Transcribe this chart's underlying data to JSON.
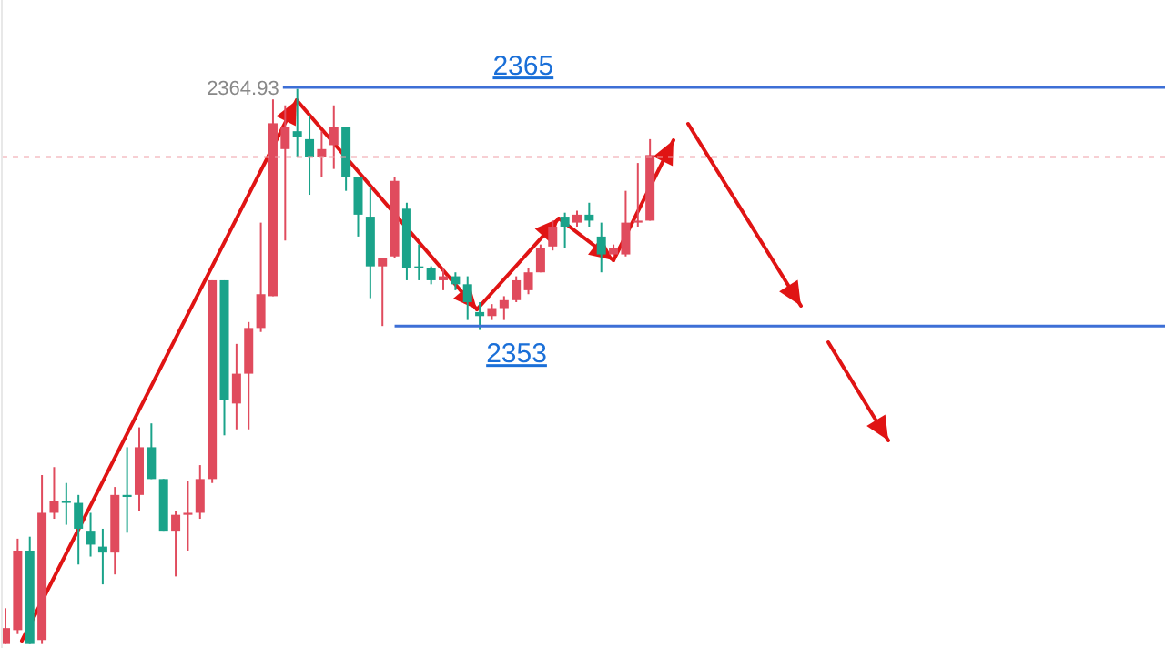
{
  "chart_data": {
    "type": "candlestick",
    "categories": [
      null,
      null,
      null,
      null,
      null,
      null,
      null,
      null,
      null,
      null,
      null,
      null,
      null,
      null,
      null,
      null,
      null,
      null,
      null,
      null,
      null,
      null,
      null,
      null,
      null,
      null,
      null,
      null,
      null,
      null,
      null,
      null,
      null,
      null,
      null,
      null,
      null,
      null,
      null,
      null,
      null,
      null,
      null,
      null,
      null,
      null,
      null,
      null,
      null,
      null,
      null,
      null,
      null,
      null
    ],
    "ohlc": [
      [
        2337.0,
        2338.8,
        2337.0,
        2337.8
      ],
      [
        2337.7,
        2342.3,
        2337.5,
        2341.7
      ],
      [
        2341.7,
        2342.4,
        2337.0,
        2337.0
      ],
      [
        2337.2,
        2345.5,
        2337.0,
        2343.6
      ],
      [
        2343.6,
        2345.9,
        2343.3,
        2344.2
      ],
      [
        2344.2,
        2345.1,
        2343.0,
        2344.1
      ],
      [
        2344.1,
        2344.5,
        2341.0,
        2342.8
      ],
      [
        2342.7,
        2343.6,
        2341.4,
        2342.0
      ],
      [
        2341.9,
        2342.8,
        2340.0,
        2341.6
      ],
      [
        2341.6,
        2344.9,
        2340.5,
        2344.5
      ],
      [
        2344.5,
        2346.9,
        2342.6,
        2344.4
      ],
      [
        2344.5,
        2347.9,
        2343.7,
        2346.9
      ],
      [
        2346.9,
        2348.1,
        2345.3,
        2345.3
      ],
      [
        2345.3,
        2345.3,
        2342.7,
        2342.7
      ],
      [
        2342.7,
        2343.7,
        2340.4,
        2343.5
      ],
      [
        2343.5,
        2345.2,
        2341.7,
        2343.6
      ],
      [
        2343.6,
        2346.0,
        2343.3,
        2345.3
      ],
      [
        2345.3,
        2355.3,
        2345.1,
        2355.3
      ],
      [
        2355.3,
        2355.3,
        2347.5,
        2349.3
      ],
      [
        2349.1,
        2352.1,
        2347.8,
        2350.6
      ],
      [
        2350.6,
        2353.2,
        2347.8,
        2352.9
      ],
      [
        2352.9,
        2358.2,
        2352.7,
        2354.6
      ],
      [
        2354.5,
        2364.4,
        2354.5,
        2363.2
      ],
      [
        2361.9,
        2364.1,
        2357.3,
        2363.0
      ],
      [
        2362.8,
        2364.93,
        2361.5,
        2362.5
      ],
      [
        2362.4,
        2363.6,
        2359.6,
        2361.5
      ],
      [
        2361.5,
        2362.8,
        2360.5,
        2361.9
      ],
      [
        2362.1,
        2364.1,
        2360.9,
        2363.0
      ],
      [
        2363.0,
        2363.0,
        2359.8,
        2360.5
      ],
      [
        2360.5,
        2360.5,
        2357.5,
        2358.6
      ],
      [
        2358.5,
        2360.0,
        2354.4,
        2356.0
      ],
      [
        2356.0,
        2356.4,
        2353.0,
        2356.4
      ],
      [
        2356.5,
        2360.5,
        2356.4,
        2360.3
      ],
      [
        2358.9,
        2359.2,
        2355.3,
        2355.9
      ],
      [
        2356.0,
        2357.1,
        2355.3,
        2355.9
      ],
      [
        2355.9,
        2356.0,
        2355.1,
        2355.3
      ],
      [
        2355.3,
        2355.9,
        2354.8,
        2355.5
      ],
      [
        2355.5,
        2355.7,
        2354.8,
        2355.1
      ],
      [
        2355.1,
        2355.5,
        2353.3,
        2354.2
      ],
      [
        2353.7,
        2354.2,
        2352.8,
        2353.5
      ],
      [
        2353.5,
        2354.1,
        2353.3,
        2353.9
      ],
      [
        2353.9,
        2354.5,
        2353.3,
        2354.3
      ],
      [
        2354.3,
        2355.5,
        2354.2,
        2355.3
      ],
      [
        2354.8,
        2355.9,
        2354.6,
        2355.7
      ],
      [
        2355.7,
        2357.1,
        2355.7,
        2356.9
      ],
      [
        2357.0,
        2358.3,
        2356.8,
        2358.0
      ],
      [
        2358.5,
        2358.7,
        2356.9,
        2358.0
      ],
      [
        2358.2,
        2358.8,
        2358.0,
        2358.6
      ],
      [
        2358.6,
        2359.2,
        2358.0,
        2358.3
      ],
      [
        2357.5,
        2358.2,
        2355.7,
        2356.6
      ],
      [
        2356.6,
        2357.1,
        2356.5,
        2356.9
      ],
      [
        2356.6,
        2359.8,
        2356.5,
        2358.2
      ],
      [
        2358.2,
        2361.2,
        2358.0,
        2358.3
      ],
      [
        2358.3,
        2362.4,
        2358.3,
        2361.6
      ]
    ],
    "colors": [
      "#e04b5d",
      "#e04b5d",
      "#1aa38a",
      "#e04b5d",
      "#e04b5d",
      "#1aa38a",
      "#1aa38a",
      "#1aa38a",
      "#1aa38a",
      "#e04b5d",
      "#1aa38a",
      "#e04b5d",
      "#1aa38a",
      "#1aa38a",
      "#e04b5d",
      "#e04b5d",
      "#e04b5d",
      "#e04b5d",
      "#1aa38a",
      "#e04b5d",
      "#e04b5d",
      "#e04b5d",
      "#e04b5d",
      "#e04b5d",
      "#1aa38a",
      "#1aa38a",
      "#e04b5d",
      "#e04b5d",
      "#1aa38a",
      "#1aa38a",
      "#1aa38a",
      "#e04b5d",
      "#e04b5d",
      "#1aa38a",
      "#1aa38a",
      "#1aa38a",
      "#e04b5d",
      "#1aa38a",
      "#1aa38a",
      "#1aa38a",
      "#e04b5d",
      "#e04b5d",
      "#e04b5d",
      "#e04b5d",
      "#e04b5d",
      "#e04b5d",
      "#1aa38a",
      "#e04b5d",
      "#1aa38a",
      "#1aa38a",
      "#e04b5d",
      "#e04b5d",
      "#e04b5d",
      "#e04b5d"
    ],
    "ylim": [
      2336.8,
      2369.4
    ],
    "tick_labels": false,
    "grid": false,
    "ref_lines": [
      {
        "axis": "y",
        "value": 2365,
        "label": "2365",
        "color": "#3d6fd6"
      },
      {
        "axis": "y",
        "value": 2353,
        "label": "2353",
        "color": "#3d6fd6"
      },
      {
        "axis": "y",
        "value": 2361.5,
        "color": "#f0a0a8",
        "line_style": "dashed"
      }
    ],
    "annotations": [
      "2364.93"
    ]
  }
}
